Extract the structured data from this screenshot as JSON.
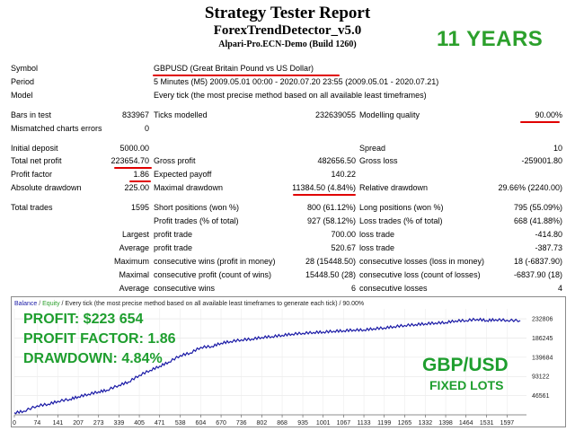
{
  "header": {
    "title": "Strategy Tester Report",
    "expert": "ForexTrendDetector_v5.0",
    "server": "Alpari-Pro.ECN-Demo (Build 1260)",
    "badge": "11 YEARS"
  },
  "info": {
    "symbol_label": "Symbol",
    "symbol_value": "GBPUSD (Great Britain Pound vs US Dollar)",
    "period_label": "Period",
    "period_value": "5 Minutes (M5) 2009.05.01 00:00 - 2020.07.20 23:55 (2009.05.01 - 2020.07.21)",
    "model_label": "Model",
    "model_value": "Every tick (the most precise method based on all available least timeframes)"
  },
  "stats": {
    "bars_label": "Bars in test",
    "bars_value": "833967",
    "ticks_label": "Ticks modelled",
    "ticks_value": "232639055",
    "quality_label": "Modelling quality",
    "quality_value": "90.00%",
    "mismatch_label": "Mismatched charts errors",
    "mismatch_value": "0",
    "deposit_label": "Initial deposit",
    "deposit_value": "5000.00",
    "spread_label": "Spread",
    "spread_value": "10",
    "netprofit_label": "Total net profit",
    "netprofit_value": "223654.70",
    "grossprofit_label": "Gross profit",
    "grossprofit_value": "482656.50",
    "grossloss_label": "Gross loss",
    "grossloss_value": "-259001.80",
    "pf_label": "Profit factor",
    "pf_value": "1.86",
    "payoff_label": "Expected payoff",
    "payoff_value": "140.22",
    "absdd_label": "Absolute drawdown",
    "absdd_value": "225.00",
    "maxdd_label": "Maximal drawdown",
    "maxdd_value": "11384.50 (4.84%)",
    "reldd_label": "Relative drawdown",
    "reldd_value": "29.66% (2240.00)",
    "trades_label": "Total trades",
    "trades_value": "1595",
    "short_label": "Short positions (won %)",
    "short_value": "800 (61.12%)",
    "long_label": "Long positions (won %)",
    "long_value": "795 (55.09%)",
    "ptrades_label": "Profit trades (% of total)",
    "ptrades_value": "927 (58.12%)",
    "ltrades_label": "Loss trades (% of total)",
    "ltrades_value": "668 (41.88%)",
    "largest_label": "Largest",
    "average_label": "Average",
    "maximum_label": "Maximum",
    "maximal_label": "Maximal",
    "profit_trade_label": "profit trade",
    "loss_trade_label": "loss trade",
    "largest_profit_value": "700.00",
    "largest_loss_value": "-414.80",
    "average_profit_value": "520.67",
    "average_loss_value": "-387.73",
    "cwins_money_label": "consecutive wins (profit in money)",
    "cwins_money_value": "28 (15448.50)",
    "closs_money_label": "consecutive losses (loss in money)",
    "closs_money_value": "18 (-6837.90)",
    "cprofit_count_label": "consecutive profit (count of wins)",
    "cprofit_count_value": "15448.50 (28)",
    "closs_count_label": "consecutive loss (count of losses)",
    "closs_count_value": "-6837.90 (18)",
    "avg_cwins_label": "consecutive wins",
    "avg_cwins_value": "6",
    "avg_closs_label": "consecutive losses",
    "avg_closs_value": "4"
  },
  "colors": {
    "balance_line": "#1a1aa6",
    "equity_line": "#2ca02c",
    "underline": "#e00000",
    "overlay_green": "#1e9e2e"
  },
  "overlay": {
    "profit_prefix": "PROFIT:",
    "profit_value": "$223 654",
    "pf_prefix": "PROFIT FACTOR:",
    "pf_value": "1.86",
    "dd_prefix": "DRAWDOWN:",
    "dd_value": "4.84%",
    "pair": "GBP/USD",
    "lots": "FIXED LOTS"
  },
  "chart_data": {
    "type": "line",
    "legend_balance": "Balance",
    "legend_sep": " / ",
    "legend_equity": "Equity",
    "caption": " / Every tick (the most precise method based on all available least timeframes to generate each tick) / 90.00%",
    "x_ticks": [
      0,
      74,
      141,
      207,
      273,
      339,
      405,
      471,
      538,
      604,
      670,
      736,
      802,
      868,
      935,
      1001,
      1067,
      1133,
      1199,
      1265,
      1332,
      1398,
      1464,
      1531,
      1597
    ],
    "y_ticks": [
      46561,
      93122,
      139684,
      186245,
      232806
    ],
    "x_range": [
      0,
      1660
    ],
    "y_range": [
      0,
      257000
    ],
    "series": [
      {
        "x": [
          0,
          30,
          74,
          110,
          141,
          180,
          207,
          240,
          273,
          300,
          339,
          370,
          405,
          440,
          471,
          500,
          538,
          570,
          604,
          640,
          670,
          700,
          736,
          770,
          802,
          835,
          868,
          900,
          935,
          970,
          1001,
          1035,
          1067,
          1100,
          1133,
          1165,
          1199,
          1230,
          1265,
          1300,
          1332,
          1365,
          1398,
          1430,
          1464,
          1500,
          1531,
          1560,
          1597,
          1640
        ],
        "y": [
          5000,
          9000,
          22000,
          26000,
          33000,
          38000,
          44000,
          50000,
          56000,
          60000,
          72000,
          80000,
          96000,
          108000,
          118000,
          128000,
          144000,
          150000,
          164000,
          166000,
          174000,
          178000,
          182000,
          184000,
          188000,
          190000,
          193000,
          196000,
          198000,
          200000,
          201000,
          203000,
          204000,
          206000,
          206000,
          209000,
          211000,
          214000,
          217000,
          219000,
          221000,
          223000,
          224000,
          228000,
          229000,
          232000,
          229000,
          231000,
          229500,
          228654
        ]
      }
    ]
  }
}
